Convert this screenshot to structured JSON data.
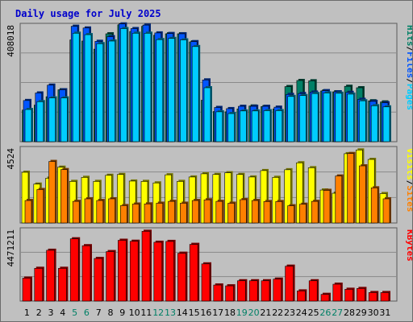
{
  "title": "Daily usage for July 2025",
  "colors": {
    "background": "#c0c0c0",
    "hits": "#00ccff",
    "files": "#0055ff",
    "pages": "#008066",
    "visits": "#ffff00",
    "sites": "#ff8000",
    "kbytes": "#ff0000",
    "weekend_label": "#008066",
    "weekday_label": "#000000",
    "separator": "#000000"
  },
  "chart_data": [
    {
      "type": "bar",
      "panel": "hits-files-pages",
      "max_label": "408018",
      "side_labels": [
        "Pages",
        "/",
        "Files",
        "/",
        "Hits"
      ],
      "categories": [
        "1",
        "2",
        "3",
        "4",
        "5",
        "6",
        "7",
        "8",
        "9",
        "10",
        "11",
        "12",
        "13",
        "14",
        "15",
        "16",
        "17",
        "18",
        "19",
        "20",
        "21",
        "22",
        "23",
        "24",
        "25",
        "26",
        "27",
        "28",
        "29",
        "30",
        "31"
      ],
      "weekend_days": [
        5,
        6,
        12,
        13,
        19,
        20,
        26,
        27
      ],
      "ylim": [
        0,
        408018
      ],
      "series": [
        {
          "name": "Hits",
          "color": "#00ccff",
          "values": [
            111000,
            138000,
            151000,
            151000,
            374000,
            369000,
            338000,
            347000,
            390000,
            374000,
            374000,
            352000,
            356000,
            351000,
            328000,
            186000,
            103000,
            97000,
            106000,
            106000,
            107000,
            107000,
            156000,
            159000,
            166000,
            168000,
            167000,
            164000,
            141000,
            124000,
            120000
          ]
        },
        {
          "name": "Files",
          "color": "#0055ff",
          "values": [
            142000,
            168000,
            195000,
            179000,
            398000,
            392000,
            346000,
            362000,
            406000,
            390000,
            402000,
            375000,
            373000,
            372000,
            345000,
            213000,
            118000,
            114000,
            122000,
            122000,
            122000,
            119000,
            163000,
            166000,
            171000,
            176000,
            172000,
            170000,
            146000,
            139000,
            134000
          ]
        },
        {
          "name": "Pages",
          "color": "#008066",
          "values": [
            109000,
            126000,
            155000,
            179000,
            351000,
            347000,
            319000,
            372000,
            403000,
            380000,
            398000,
            367000,
            372000,
            372000,
            344000,
            143000,
            104000,
            103000,
            113000,
            123000,
            121000,
            113000,
            190000,
            211000,
            210000,
            175000,
            172000,
            191000,
            186000,
            141000,
            137000
          ]
        }
      ]
    },
    {
      "type": "bar",
      "panel": "visits-sites",
      "max_label": "4524",
      "side_labels": [
        "Sites",
        "/",
        "Visits"
      ],
      "categories": [
        "1",
        "2",
        "3",
        "4",
        "5",
        "6",
        "7",
        "8",
        "9",
        "10",
        "11",
        "12",
        "13",
        "14",
        "15",
        "16",
        "17",
        "18",
        "19",
        "20",
        "21",
        "22",
        "23",
        "24",
        "25",
        "26",
        "27",
        "28",
        "29",
        "30",
        "31"
      ],
      "ylim": [
        0,
        4524
      ],
      "series": [
        {
          "name": "Visits",
          "color": "#ffff00",
          "values": [
            3000,
            2300,
            2650,
            3300,
            2460,
            2700,
            2460,
            2820,
            2870,
            2480,
            2460,
            2370,
            2850,
            2460,
            2720,
            2910,
            2870,
            2970,
            2870,
            2720,
            3100,
            2700,
            3150,
            3560,
            3270,
            1950,
            1760,
            4100,
            4320,
            3760,
            1740
          ]
        },
        {
          "name": "Sites",
          "color": "#ff8000",
          "values": [
            1330,
            1980,
            3640,
            3160,
            1280,
            1430,
            1330,
            1430,
            1030,
            1120,
            1130,
            1170,
            1280,
            1170,
            1330,
            1370,
            1280,
            1170,
            1380,
            1330,
            1270,
            1270,
            1020,
            1110,
            1280,
            1930,
            2780,
            4110,
            3380,
            2080,
            1430
          ]
        }
      ]
    },
    {
      "type": "bar",
      "panel": "kbytes",
      "max_label": "4471211",
      "side_labels": [
        "KBytes"
      ],
      "categories": [
        "1",
        "2",
        "3",
        "4",
        "5",
        "6",
        "7",
        "8",
        "9",
        "10",
        "11",
        "12",
        "13",
        "14",
        "15",
        "16",
        "17",
        "18",
        "19",
        "20",
        "21",
        "22",
        "23",
        "24",
        "25",
        "26",
        "27",
        "28",
        "29",
        "30",
        "31"
      ],
      "ylim": [
        0,
        4471211
      ],
      "series": [
        {
          "name": "KBytes",
          "color": "#ff0000",
          "values": [
            1400000,
            2000000,
            3100000,
            2000000,
            3800000,
            3380000,
            2600000,
            3020000,
            3710000,
            3650000,
            4260000,
            3590000,
            3640000,
            2920000,
            3460000,
            2270000,
            980000,
            930000,
            1240000,
            1240000,
            1240000,
            1340000,
            2130000,
            620000,
            1240000,
            410000,
            1030000,
            720000,
            770000,
            520000,
            520000
          ]
        }
      ]
    }
  ]
}
